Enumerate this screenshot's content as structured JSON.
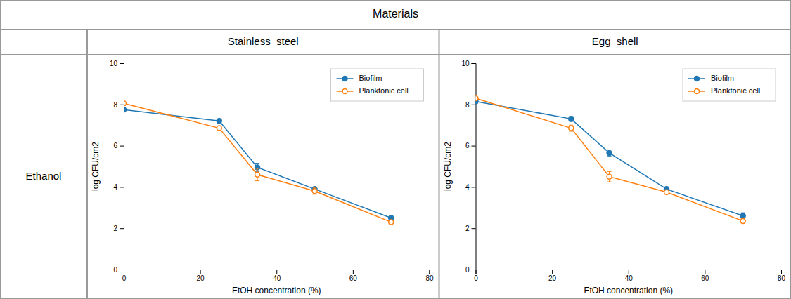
{
  "title": "Materials",
  "annotations": [
    "Ethanol"
  ],
  "chart_data": [
    {
      "type": "line",
      "title": "Stainless  steel",
      "xlabel": "EtOH concentration (%)",
      "ylabel": "log CFU/cm2",
      "x": [
        0,
        25,
        35,
        50,
        70
      ],
      "xlim": [
        0,
        80
      ],
      "ylim": [
        0,
        10
      ],
      "xticks": [
        0,
        20,
        40,
        60,
        80
      ],
      "yticks": [
        0,
        2,
        4,
        6,
        8,
        10
      ],
      "grid": false,
      "legend": "upper right",
      "marker": "circle",
      "series": [
        {
          "name": "Biofilm",
          "values": [
            7.75,
            7.2,
            4.95,
            3.9,
            2.5
          ],
          "errors": [
            0.1,
            0.1,
            0.2,
            0.1,
            0.1
          ]
        },
        {
          "name": "Planktonic cell",
          "values": [
            8.05,
            6.85,
            4.6,
            3.8,
            2.3
          ],
          "errors": [
            0.1,
            0.1,
            0.3,
            0.15,
            0.1
          ]
        }
      ]
    },
    {
      "type": "line",
      "title": "Egg  shell",
      "xlabel": "EtOH concentration (%)",
      "ylabel": "log CFU/cm2",
      "x": [
        0,
        25,
        35,
        50,
        70
      ],
      "xlim": [
        0,
        80
      ],
      "ylim": [
        0,
        10
      ],
      "xticks": [
        0,
        20,
        40,
        60,
        80
      ],
      "yticks": [
        0,
        2,
        4,
        6,
        8,
        10
      ],
      "grid": false,
      "legend": "upper right",
      "marker": "circle",
      "series": [
        {
          "name": "Biofilm",
          "values": [
            8.15,
            7.3,
            5.65,
            3.9,
            2.6
          ],
          "errors": [
            0.1,
            0.12,
            0.15,
            0.1,
            0.15
          ]
        },
        {
          "name": "Planktonic cell",
          "values": [
            8.3,
            6.85,
            4.5,
            3.75,
            2.35
          ],
          "errors": [
            0.05,
            0.15,
            0.25,
            0.1,
            0.1
          ]
        }
      ]
    }
  ]
}
